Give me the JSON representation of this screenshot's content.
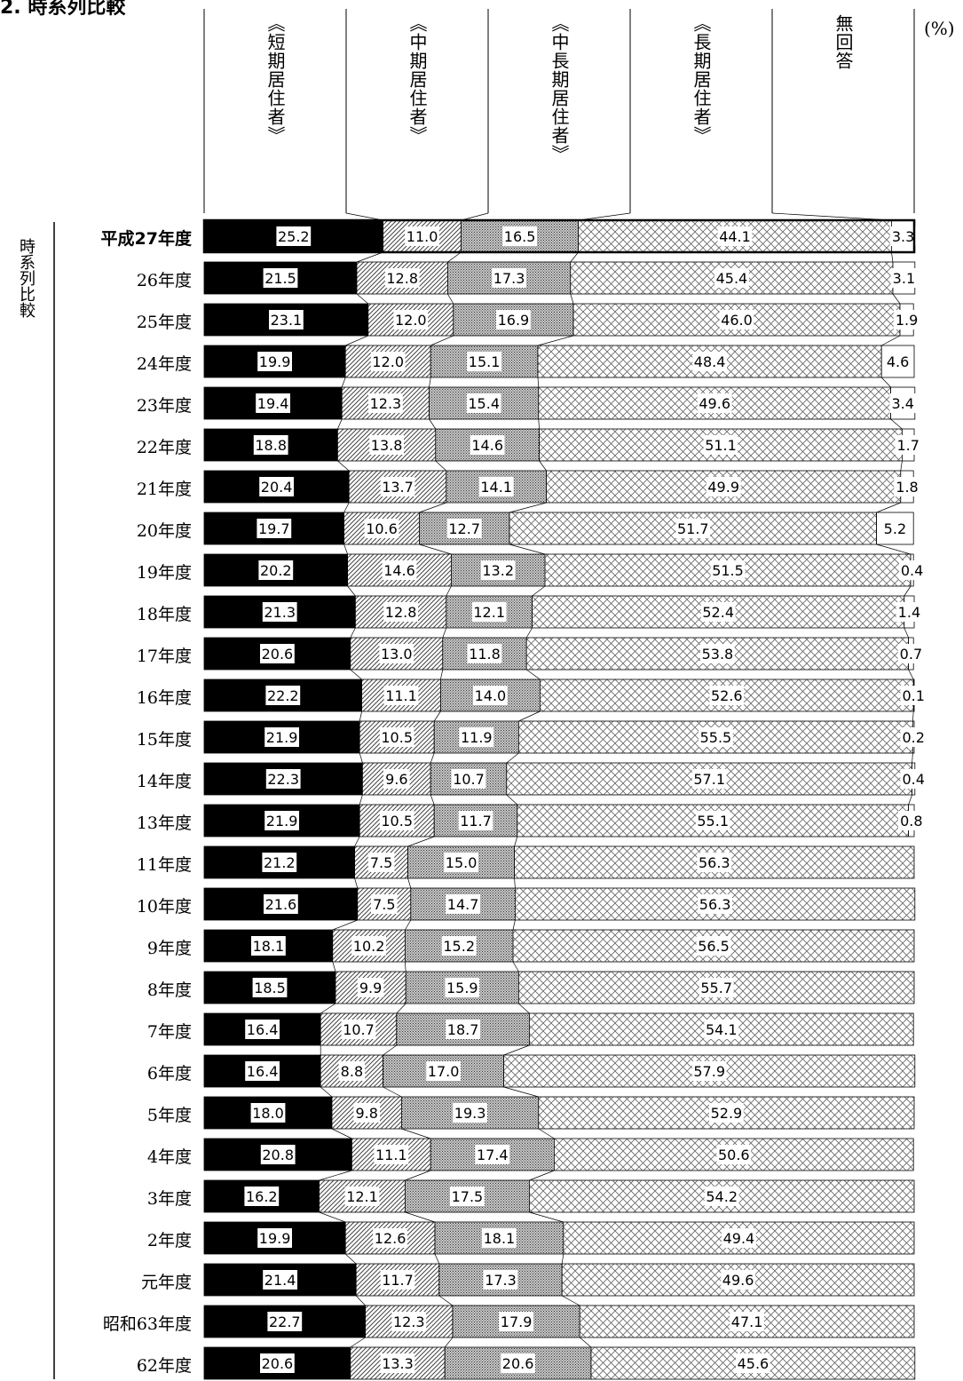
{
  "page": {
    "title": "2. 時系列比較",
    "unit_label": "(%)",
    "side_label": "時系列比較"
  },
  "chart_data": {
    "type": "bar",
    "orientation": "horizontal",
    "stacked": "100%",
    "title": "",
    "series": [
      {
        "name": "《短期居住者》",
        "fill": "solid-black",
        "values": [
          25.2,
          21.5,
          23.1,
          19.9,
          19.4,
          18.8,
          20.4,
          19.7,
          20.2,
          21.3,
          20.6,
          22.2,
          21.9,
          22.3,
          21.9,
          21.2,
          21.6,
          18.1,
          18.5,
          16.4,
          16.4,
          18.0,
          20.8,
          16.2,
          19.9,
          21.4,
          22.7,
          20.6
        ]
      },
      {
        "name": "《中期居住者》",
        "fill": "diagonal-hatch",
        "values": [
          11.0,
          12.8,
          12.0,
          12.0,
          12.3,
          13.8,
          13.7,
          10.6,
          14.6,
          12.8,
          13.0,
          11.1,
          10.5,
          9.6,
          10.5,
          7.5,
          7.5,
          10.2,
          9.9,
          10.7,
          8.8,
          9.8,
          11.1,
          12.1,
          12.6,
          11.7,
          12.3,
          13.3
        ]
      },
      {
        "name": "《中長期居住者》",
        "fill": "dense-dots",
        "values": [
          16.5,
          17.3,
          16.9,
          15.1,
          15.4,
          14.6,
          14.1,
          12.7,
          13.2,
          12.1,
          11.8,
          14.0,
          11.9,
          10.7,
          11.7,
          15.0,
          14.7,
          15.2,
          15.9,
          18.7,
          17.0,
          19.3,
          17.4,
          17.5,
          18.1,
          17.3,
          17.9,
          20.6
        ]
      },
      {
        "name": "《長期居住者》",
        "fill": "cross-hatch",
        "values": [
          44.1,
          45.4,
          46.0,
          48.4,
          49.6,
          51.1,
          49.9,
          51.7,
          51.5,
          52.4,
          53.8,
          52.6,
          55.5,
          57.1,
          55.1,
          56.3,
          56.3,
          56.5,
          55.7,
          54.1,
          57.9,
          52.9,
          50.6,
          54.2,
          49.4,
          49.6,
          47.1,
          45.6
        ]
      },
      {
        "name": "無回答",
        "fill": "white",
        "values": [
          3.3,
          3.1,
          1.9,
          4.6,
          3.4,
          1.7,
          1.8,
          5.2,
          0.4,
          1.4,
          0.7,
          0.1,
          0.2,
          0.4,
          0.8,
          null,
          null,
          null,
          null,
          null,
          null,
          null,
          null,
          null,
          null,
          null,
          null,
          null
        ]
      }
    ],
    "categories": [
      "平成27年度",
      "26年度",
      "25年度",
      "24年度",
      "23年度",
      "22年度",
      "21年度",
      "20年度",
      "19年度",
      "18年度",
      "17年度",
      "16年度",
      "15年度",
      "14年度",
      "13年度",
      "11年度",
      "10年度",
      "9年度",
      "8年度",
      "7年度",
      "6年度",
      "5年度",
      "4年度",
      "3年度",
      "2年度",
      "元年度",
      "昭和63年度",
      "62年度"
    ],
    "highlight_category": "平成27年度",
    "legend": "column headers above bars",
    "grid": false
  }
}
